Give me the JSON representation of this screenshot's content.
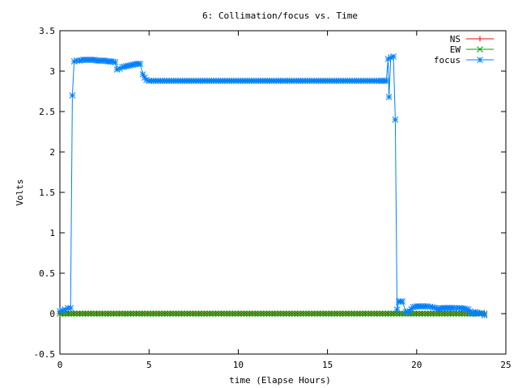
{
  "chart_data": {
    "type": "line",
    "title": "6: Collimation/focus vs. Time",
    "xlabel": "time (Elapse Hours)",
    "ylabel": "Volts",
    "xlim": [
      0,
      25
    ],
    "ylim": [
      -0.5,
      3.5
    ],
    "xticks": [
      0,
      5,
      10,
      15,
      20,
      25
    ],
    "yticks": [
      -0.5,
      0,
      0.5,
      1,
      1.5,
      2,
      2.5,
      3,
      3.5
    ],
    "grid": false,
    "legend_position": "top-right",
    "series": [
      {
        "name": "NS",
        "color": "#ff0000",
        "marker": "plus",
        "points": [
          [
            0.0,
            0.0
          ],
          [
            23.8,
            0.0
          ]
        ]
      },
      {
        "name": "EW",
        "color": "#00a000",
        "marker": "cross",
        "points": [
          [
            0.0,
            0.0
          ],
          [
            23.8,
            0.0
          ]
        ]
      },
      {
        "name": "focus",
        "color": "#0080ff",
        "marker": "star",
        "points": [
          [
            0.0,
            0.03
          ],
          [
            0.15,
            0.04
          ],
          [
            0.3,
            0.05
          ],
          [
            0.45,
            0.07
          ],
          [
            0.6,
            0.07
          ],
          [
            0.7,
            2.7
          ],
          [
            0.8,
            3.12
          ],
          [
            0.95,
            3.13
          ],
          [
            1.1,
            3.13
          ],
          [
            1.3,
            3.14
          ],
          [
            1.5,
            3.14
          ],
          [
            1.7,
            3.14
          ],
          [
            1.9,
            3.14
          ],
          [
            2.1,
            3.13
          ],
          [
            2.3,
            3.13
          ],
          [
            2.5,
            3.13
          ],
          [
            2.7,
            3.12
          ],
          [
            2.9,
            3.12
          ],
          [
            3.1,
            3.11
          ],
          [
            3.2,
            3.02
          ],
          [
            3.35,
            3.03
          ],
          [
            3.5,
            3.05
          ],
          [
            3.7,
            3.06
          ],
          [
            3.9,
            3.07
          ],
          [
            4.1,
            3.08
          ],
          [
            4.3,
            3.09
          ],
          [
            4.5,
            3.09
          ],
          [
            4.65,
            2.96
          ],
          [
            4.75,
            2.92
          ],
          [
            4.85,
            2.89
          ],
          [
            5.0,
            2.88
          ],
          [
            5.5,
            2.88
          ],
          [
            6.0,
            2.88
          ],
          [
            7.0,
            2.88
          ],
          [
            8.0,
            2.88
          ],
          [
            9.0,
            2.88
          ],
          [
            10.0,
            2.88
          ],
          [
            11.0,
            2.88
          ],
          [
            12.0,
            2.88
          ],
          [
            13.0,
            2.88
          ],
          [
            14.0,
            2.88
          ],
          [
            15.0,
            2.88
          ],
          [
            16.0,
            2.88
          ],
          [
            17.0,
            2.88
          ],
          [
            18.0,
            2.88
          ],
          [
            18.2,
            2.88
          ],
          [
            18.3,
            2.88
          ],
          [
            18.4,
            3.15
          ],
          [
            18.45,
            2.68
          ],
          [
            18.55,
            3.17
          ],
          [
            18.7,
            3.18
          ],
          [
            18.8,
            2.4
          ],
          [
            18.9,
            0.05
          ],
          [
            19.0,
            0.15
          ],
          [
            19.2,
            0.15
          ],
          [
            19.4,
            0.02
          ],
          [
            19.6,
            0.03
          ],
          [
            19.8,
            0.08
          ],
          [
            20.0,
            0.09
          ],
          [
            20.3,
            0.09
          ],
          [
            20.6,
            0.09
          ],
          [
            20.9,
            0.08
          ],
          [
            21.2,
            0.06
          ],
          [
            21.5,
            0.07
          ],
          [
            21.8,
            0.07
          ],
          [
            22.1,
            0.07
          ],
          [
            22.4,
            0.07
          ],
          [
            22.7,
            0.06
          ],
          [
            22.9,
            0.05
          ],
          [
            23.1,
            0.0
          ],
          [
            23.3,
            0.02
          ],
          [
            23.5,
            0.0
          ],
          [
            23.65,
            0.01
          ],
          [
            23.8,
            -0.02
          ]
        ]
      }
    ]
  }
}
